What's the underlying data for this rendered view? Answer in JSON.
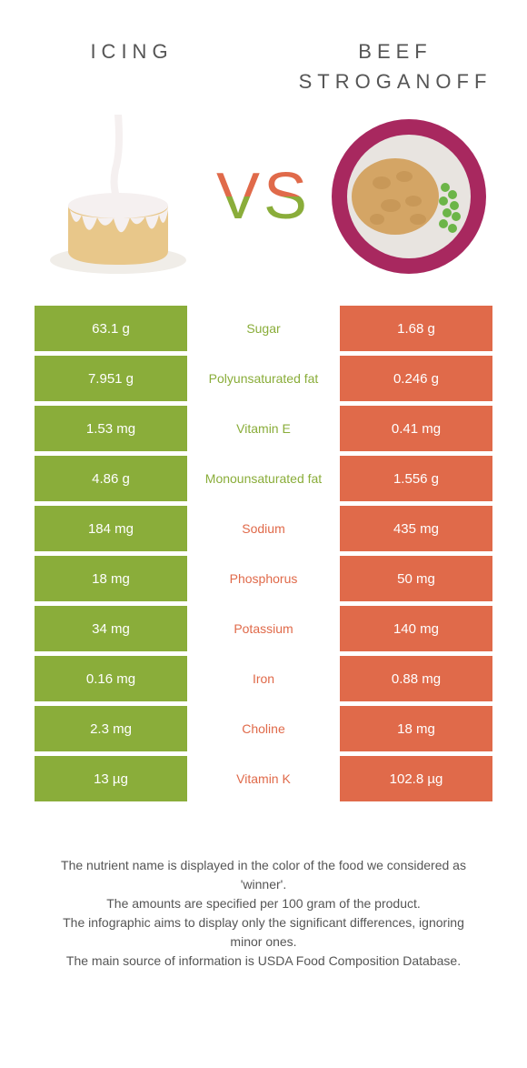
{
  "colors": {
    "green": "#8aad3a",
    "orange": "#e06a4a",
    "cake_body": "#e8c78a",
    "cake_icing": "#f5f0f0",
    "plate_rim": "#a8285f",
    "plate_inner": "#e8e4e0",
    "noodles": "#d4a565",
    "peas": "#6cb548"
  },
  "title_left": "Icing",
  "title_right": "Beef Stroganoff",
  "vs_label": "VS",
  "rows": [
    {
      "left": "63.1 g",
      "label": "Sugar",
      "right": "1.68 g",
      "winner": "left"
    },
    {
      "left": "7.951 g",
      "label": "Polyunsaturated fat",
      "right": "0.246 g",
      "winner": "left"
    },
    {
      "left": "1.53 mg",
      "label": "Vitamin E",
      "right": "0.41 mg",
      "winner": "left"
    },
    {
      "left": "4.86 g",
      "label": "Monounsaturated fat",
      "right": "1.556 g",
      "winner": "left"
    },
    {
      "left": "184 mg",
      "label": "Sodium",
      "right": "435 mg",
      "winner": "right"
    },
    {
      "left": "18 mg",
      "label": "Phosphorus",
      "right": "50 mg",
      "winner": "right"
    },
    {
      "left": "34 mg",
      "label": "Potassium",
      "right": "140 mg",
      "winner": "right"
    },
    {
      "left": "0.16 mg",
      "label": "Iron",
      "right": "0.88 mg",
      "winner": "right"
    },
    {
      "left": "2.3 mg",
      "label": "Choline",
      "right": "18 mg",
      "winner": "right"
    },
    {
      "left": "13 µg",
      "label": "Vitamin K",
      "right": "102.8 µg",
      "winner": "right"
    }
  ],
  "footer_lines": [
    "The nutrient name is displayed in the color of the food we considered as 'winner'.",
    "The amounts are specified per 100 gram of the product.",
    "The infographic aims to display only the significant differences, ignoring minor ones.",
    "The main source of information is USDA Food Composition Database."
  ]
}
